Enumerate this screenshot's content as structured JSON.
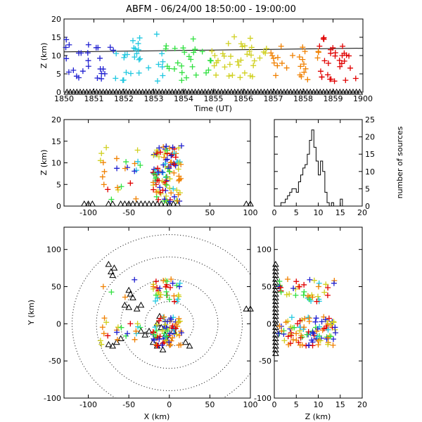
{
  "chart_data": [
    {
      "panel": "time-height",
      "type": "scatter",
      "title": "ABFM - 06/24/00 18:50:00 - 19:00:00",
      "xlabel": "Time (UT)",
      "ylabel": "Z (km)",
      "xlim": [
        1850,
        1900
      ],
      "ylim": [
        0,
        20
      ],
      "x_tick_labels": [
        "1850",
        "1851",
        "1852",
        "1853",
        "1854",
        "1855",
        "1856",
        "1857",
        "1858",
        "1859",
        "1900"
      ],
      "y_tick_labels": [
        "0",
        "5",
        "10",
        "15",
        "20"
      ],
      "reference_line": {
        "from": [
          1850,
          11
        ],
        "to": [
          1900,
          12
        ]
      },
      "color_scale": "time: purple to red",
      "triangle_markers": "stations along Z=0"
    },
    {
      "panel": "x-z",
      "type": "scatter",
      "xlabel": "",
      "ylabel": "Z (km)",
      "xlim": [
        -130,
        100
      ],
      "ylim": [
        0,
        20
      ],
      "x_tick_labels": [
        "-100",
        "-50",
        "0",
        "50",
        "100"
      ],
      "y_tick_labels": [
        "0",
        "5",
        "10",
        "15",
        "20"
      ]
    },
    {
      "panel": "z-histogram",
      "type": "area",
      "xlabel": "",
      "ylabel": "number of sources",
      "xlim": [
        0,
        20
      ],
      "ylim": [
        0,
        25
      ],
      "x_tick_labels": [
        "0",
        "5",
        "10",
        "15",
        "20"
      ],
      "y_tick_labels": [
        "0",
        "5",
        "10",
        "15",
        "20",
        "25"
      ],
      "bin_width": 0.5,
      "x": [
        0,
        0.5,
        1,
        1.5,
        2,
        2.5,
        3,
        3.5,
        4,
        4.5,
        5,
        5.5,
        6,
        6.5,
        7,
        7.5,
        8,
        8.5,
        9,
        9.5,
        10,
        10.5,
        11,
        11.5,
        12,
        12.5,
        13,
        13.5,
        14,
        14.5,
        15,
        15.5
      ],
      "values": [
        0,
        0,
        0,
        1,
        1,
        2,
        3,
        4,
        5,
        5,
        4,
        7,
        9,
        11,
        12,
        15,
        19,
        22,
        17,
        13,
        9,
        13,
        10,
        4,
        1,
        0,
        1,
        0,
        0,
        0,
        2,
        0
      ]
    },
    {
      "panel": "plan-view",
      "type": "scatter",
      "xlabel": "X (km)",
      "ylabel": "Y (km)",
      "xlim": [
        -130,
        100
      ],
      "ylim": [
        -100,
        130
      ],
      "x_tick_labels": [
        "-100",
        "-50",
        "0",
        "50",
        "100"
      ],
      "y_tick_labels": [
        "-100",
        "-50",
        "0",
        "50",
        "100"
      ],
      "range_rings_km": [
        30,
        60,
        90,
        120
      ]
    },
    {
      "panel": "z-y",
      "type": "scatter",
      "xlabel": "Z (km)",
      "ylabel": "",
      "xlim": [
        0,
        20
      ],
      "ylim": [
        -100,
        130
      ],
      "x_tick_labels": [
        "0",
        "5",
        "10",
        "15",
        "20"
      ],
      "y_tick_labels": [
        "-100",
        "-50",
        "0",
        "50",
        "100"
      ]
    }
  ]
}
